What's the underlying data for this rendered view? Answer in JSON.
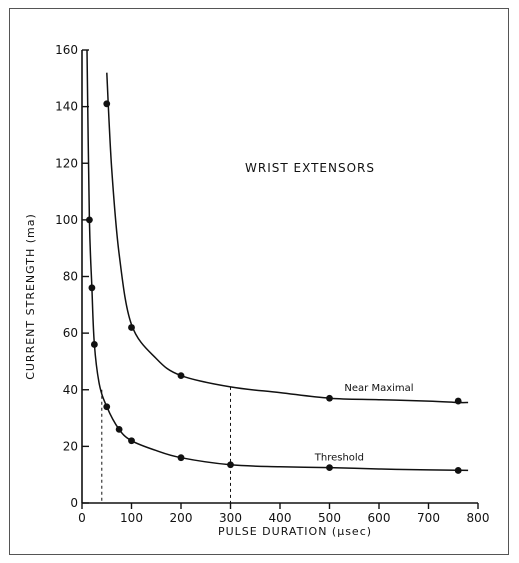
{
  "chart_data": {
    "type": "line",
    "title": "WRIST EXTENSORS",
    "xlabel": "PULSE DURATION (μsec)",
    "ylabel": "CURRENT STRENGTH (ma)",
    "xlim": [
      0,
      800
    ],
    "ylim": [
      0,
      160
    ],
    "x_ticks": [
      0,
      100,
      200,
      300,
      400,
      500,
      600,
      700,
      800
    ],
    "y_ticks": [
      0,
      20,
      40,
      60,
      80,
      100,
      120,
      140,
      160
    ],
    "grid": false,
    "series": [
      {
        "name": "Near Maximal",
        "points": [
          [
            50,
            141
          ],
          [
            100,
            62
          ],
          [
            200,
            45
          ],
          [
            500,
            37
          ],
          [
            760,
            36
          ]
        ],
        "curve": [
          [
            50,
            152
          ],
          [
            60,
            118
          ],
          [
            75,
            88
          ],
          [
            100,
            63
          ],
          [
            150,
            51
          ],
          [
            200,
            45
          ],
          [
            300,
            41
          ],
          [
            400,
            39
          ],
          [
            500,
            37
          ],
          [
            600,
            36.5
          ],
          [
            700,
            36
          ],
          [
            760,
            35.5
          ],
          [
            780,
            35.5
          ]
        ]
      },
      {
        "name": "Threshold",
        "points": [
          [
            15,
            100
          ],
          [
            20,
            76
          ],
          [
            25,
            56
          ],
          [
            50,
            34
          ],
          [
            75,
            26
          ],
          [
            100,
            22
          ],
          [
            200,
            16
          ],
          [
            300,
            13.5
          ],
          [
            500,
            12.5
          ],
          [
            760,
            11.5
          ]
        ],
        "curve": [
          [
            10,
            160
          ],
          [
            15,
            100
          ],
          [
            20,
            76
          ],
          [
            25,
            56
          ],
          [
            35,
            42
          ],
          [
            50,
            34
          ],
          [
            75,
            26
          ],
          [
            100,
            22
          ],
          [
            150,
            18.5
          ],
          [
            200,
            16
          ],
          [
            300,
            13.5
          ],
          [
            400,
            12.8
          ],
          [
            500,
            12.5
          ],
          [
            600,
            12
          ],
          [
            700,
            11.7
          ],
          [
            780,
            11.5
          ]
        ]
      }
    ],
    "reference_lines": [
      {
        "x": 40,
        "y": 40
      },
      {
        "x": 300,
        "y": 41
      }
    ]
  }
}
